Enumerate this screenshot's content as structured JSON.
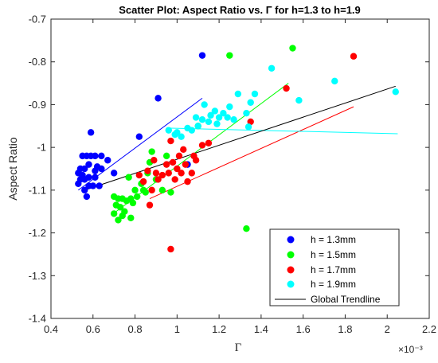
{
  "chart_data": {
    "type": "scatter",
    "title": "Scatter Plot: Aspect Ratio vs. Γ for h=1.3 to h=1.9",
    "xlabel": "Γ",
    "ylabel": "Aspect Ratio",
    "x_exponent_label": "×10⁻³",
    "xlim": [
      0.4,
      2.2
    ],
    "ylim": [
      -1.4,
      -0.7
    ],
    "xticks": [
      0.4,
      0.6,
      0.8,
      1,
      1.2,
      1.4,
      1.6,
      1.8,
      2,
      2.2
    ],
    "xtick_labels": [
      "0.4",
      "0.6",
      "0.8",
      "1",
      "1.2",
      "1.4",
      "1.6",
      "1.8",
      "2",
      "2.2"
    ],
    "yticks": [
      -1.4,
      -1.3,
      -1.2,
      -1.1,
      -1,
      -0.9,
      -0.8,
      -0.7
    ],
    "ytick_labels": [
      "-1.4",
      "-1.3",
      "-1.2",
      "-1.1",
      "-1",
      "-0.9",
      "-0.8",
      "-0.7"
    ],
    "grid": false,
    "legend_position": "bottom-right",
    "series": [
      {
        "name": "h = 1.3mm",
        "color": "#0000ff",
        "trend": [
          [
            0.53,
            -1.1
          ],
          [
            1.12,
            -0.885
          ]
        ],
        "points": [
          [
            0.53,
            -1.085
          ],
          [
            0.53,
            -1.06
          ],
          [
            0.54,
            -1.075
          ],
          [
            0.54,
            -1.05
          ],
          [
            0.55,
            -1.065
          ],
          [
            0.55,
            -1.02
          ],
          [
            0.56,
            -1.1
          ],
          [
            0.56,
            -1.075
          ],
          [
            0.56,
            -1.05
          ],
          [
            0.57,
            -1.02
          ],
          [
            0.57,
            -1.115
          ],
          [
            0.58,
            -1.09
          ],
          [
            0.58,
            -1.07
          ],
          [
            0.58,
            -1.04
          ],
          [
            0.59,
            -1.02
          ],
          [
            0.59,
            -0.965
          ],
          [
            0.6,
            -1.09
          ],
          [
            0.61,
            -1.07
          ],
          [
            0.61,
            -1.055
          ],
          [
            0.61,
            -1.02
          ],
          [
            0.62,
            -1.045
          ],
          [
            0.63,
            -1.09
          ],
          [
            0.64,
            -1.05
          ],
          [
            0.64,
            -1.02
          ],
          [
            0.67,
            -1.03
          ],
          [
            0.7,
            -1.06
          ],
          [
            0.82,
            -0.975
          ],
          [
            0.91,
            -0.885
          ],
          [
            1.05,
            -1.04
          ],
          [
            1.12,
            -0.785
          ]
        ]
      },
      {
        "name": "h = 1.5mm",
        "color": "#00ff00",
        "trend": [
          [
            0.71,
            -1.15
          ],
          [
            1.53,
            -0.85
          ]
        ],
        "points": [
          [
            0.7,
            -1.115
          ],
          [
            0.7,
            -1.155
          ],
          [
            0.71,
            -1.135
          ],
          [
            0.72,
            -1.17
          ],
          [
            0.72,
            -1.12
          ],
          [
            0.73,
            -1.14
          ],
          [
            0.74,
            -1.12
          ],
          [
            0.74,
            -1.16
          ],
          [
            0.75,
            -1.15
          ],
          [
            0.76,
            -1.125
          ],
          [
            0.77,
            -1.07
          ],
          [
            0.78,
            -1.165
          ],
          [
            0.78,
            -1.12
          ],
          [
            0.79,
            -1.13
          ],
          [
            0.8,
            -1.1
          ],
          [
            0.81,
            -1.115
          ],
          [
            0.83,
            -1.085
          ],
          [
            0.84,
            -1.1
          ],
          [
            0.85,
            -1.105
          ],
          [
            0.86,
            -1.06
          ],
          [
            0.87,
            -1.035
          ],
          [
            0.88,
            -1.01
          ],
          [
            0.9,
            -1.075
          ],
          [
            0.93,
            -1.1
          ],
          [
            0.95,
            -1.02
          ],
          [
            0.97,
            -1.105
          ],
          [
            1.1,
            -0.95
          ],
          [
            1.25,
            -0.785
          ],
          [
            1.33,
            -1.19
          ],
          [
            1.55,
            -0.768
          ]
        ]
      },
      {
        "name": "h = 1.7mm",
        "color": "#ff0000",
        "trend": [
          [
            0.87,
            -1.12
          ],
          [
            1.84,
            -0.905
          ]
        ],
        "points": [
          [
            0.82,
            -1.065
          ],
          [
            0.84,
            -1.08
          ],
          [
            0.86,
            -1.055
          ],
          [
            0.87,
            -1.135
          ],
          [
            0.88,
            -1.1
          ],
          [
            0.89,
            -1.03
          ],
          [
            0.9,
            -1.06
          ],
          [
            0.91,
            -1.075
          ],
          [
            0.93,
            -1.065
          ],
          [
            0.95,
            -1.04
          ],
          [
            0.96,
            -1.06
          ],
          [
            0.97,
            -0.985
          ],
          [
            0.98,
            -1.035
          ],
          [
            0.99,
            -1.075
          ],
          [
            1.0,
            -1.05
          ],
          [
            1.01,
            -1.02
          ],
          [
            1.02,
            -1.06
          ],
          [
            1.03,
            -1.005
          ],
          [
            1.04,
            -1.04
          ],
          [
            1.05,
            -1.08
          ],
          [
            1.07,
            -1.06
          ],
          [
            1.08,
            -1.02
          ],
          [
            1.09,
            -1.03
          ],
          [
            1.12,
            -0.995
          ],
          [
            1.15,
            -0.99
          ],
          [
            0.97,
            -1.238
          ],
          [
            1.35,
            -0.94
          ],
          [
            1.52,
            -0.862
          ],
          [
            1.84,
            -0.787
          ]
        ]
      },
      {
        "name": "h = 1.9mm",
        "color": "#00ffff",
        "trend": [
          [
            0.97,
            -0.955
          ],
          [
            2.05,
            -0.968
          ]
        ],
        "points": [
          [
            0.96,
            -0.96
          ],
          [
            0.99,
            -0.97
          ],
          [
            1.0,
            -0.965
          ],
          [
            1.02,
            -0.975
          ],
          [
            1.05,
            -0.955
          ],
          [
            1.07,
            -0.96
          ],
          [
            1.09,
            -0.93
          ],
          [
            1.1,
            -0.95
          ],
          [
            1.12,
            -0.935
          ],
          [
            1.13,
            -0.9
          ],
          [
            1.15,
            -0.94
          ],
          [
            1.16,
            -0.925
          ],
          [
            1.18,
            -0.915
          ],
          [
            1.19,
            -0.945
          ],
          [
            1.2,
            -0.93
          ],
          [
            1.22,
            -0.92
          ],
          [
            1.24,
            -0.93
          ],
          [
            1.25,
            -0.905
          ],
          [
            1.27,
            -0.935
          ],
          [
            1.29,
            -0.875
          ],
          [
            1.33,
            -0.92
          ],
          [
            1.35,
            -0.895
          ],
          [
            1.37,
            -0.875
          ],
          [
            1.34,
            -0.952
          ],
          [
            1.45,
            -0.815
          ],
          [
            1.58,
            -0.89
          ],
          [
            1.75,
            -0.845
          ],
          [
            2.04,
            -0.87
          ]
        ]
      }
    ],
    "global_trendline": {
      "name": "Global Trendline",
      "color": "#000000",
      "points": [
        [
          0.56,
          -1.1
        ],
        [
          2.04,
          -0.857
        ]
      ]
    }
  }
}
